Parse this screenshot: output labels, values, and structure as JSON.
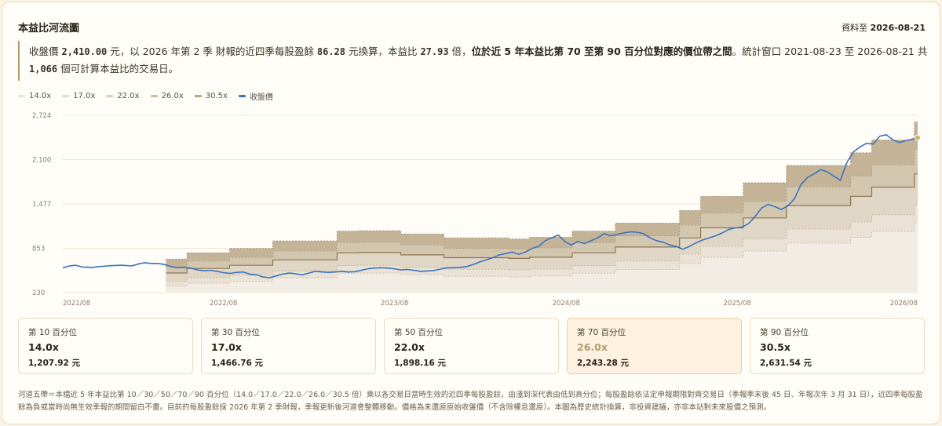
{
  "header": {
    "title": "本益比河流圖",
    "as_of_label": "資料至",
    "as_of_date": "2026-08-21"
  },
  "summary": {
    "t1": "收盤價 ",
    "price": "2,410.00",
    "t2": " 元，以 2026 年第 2 季 財報的近四季每股盈餘 ",
    "eps": "86.28",
    "t3": " 元換算，本益比 ",
    "pe": "27.93",
    "t4": " 倍，",
    "strong": "位於近 5 年本益比第 70 至第 90 百分位對應的價位帶之間",
    "t5": "。統計窗口 2021-08-23 至 2026-08-21 共 ",
    "days": "1,066",
    "t6": " 個可計算本益比的交易日。"
  },
  "legend": [
    {
      "label": "14.0x",
      "color": "#ece6da"
    },
    {
      "label": "17.0x",
      "color": "#e3dccd"
    },
    {
      "label": "22.0x",
      "color": "#d8cfbd"
    },
    {
      "label": "26.0x",
      "color": "#c9bda6"
    },
    {
      "label": "30.5x",
      "color": "#b7a788"
    },
    {
      "label": "收盤價",
      "color": "#3a72c0"
    }
  ],
  "tiles": [
    {
      "label": "第 10 百分位",
      "multiple": "14.0x",
      "price": "1,207.92 元",
      "highlight": false
    },
    {
      "label": "第 30 百分位",
      "multiple": "17.0x",
      "price": "1,466.76 元",
      "highlight": false
    },
    {
      "label": "第 50 百分位",
      "multiple": "22.0x",
      "price": "1,898.16 元",
      "highlight": false
    },
    {
      "label": "第 70 百分位",
      "multiple": "26.0x",
      "price": "2,243.28 元",
      "highlight": true
    },
    {
      "label": "第 90 百分位",
      "multiple": "30.5x",
      "price": "2,631.54 元",
      "highlight": false
    }
  ],
  "footnote": "河道五帶＝本檔近 5 年本益比第 10／30／50／70／90 百分位（14.0／17.0／22.0／26.0／30.5 倍）乘以各交易日當時生效的近四季每股盈餘，由淺到深代表由低到高分位；每股盈餘依法定申報期限對齊交易日（季報季末後 45 日、年報次年 3 月 31 日），近四季每股盈餘為負或當時尚無生效季報的期間留白不畫。目前的每股盈餘採 2026 年第 2 季財報，季報更新後河道會整體移動。價格為未還原原始收盤價（不含除權息還原）。本圖為歷史統計換算，非投資建議，亦非本站對未來股價之預測。",
  "chart_data": {
    "type": "area",
    "y_ticks": [
      230,
      853,
      1477,
      2100,
      2724
    ],
    "y_tick_labels": [
      "230",
      "853",
      "1,477",
      "2,100",
      "2,724"
    ],
    "ylim": [
      230,
      2724
    ],
    "x_start": "2021-08-23",
    "x_end": "2026-08-21",
    "x_ticks": [
      {
        "date": "2021-08-23",
        "label": "2021/08"
      },
      {
        "date": "2022-08-01",
        "label": "2022/08"
      },
      {
        "date": "2023-08-01",
        "label": "2023/08"
      },
      {
        "date": "2024-08-01",
        "label": "2024/08"
      },
      {
        "date": "2025-08-01",
        "label": "2025/08"
      },
      {
        "date": "2026-08-21",
        "label": "2026/08"
      }
    ],
    "multiples": [
      14.0,
      17.0,
      22.0,
      26.0,
      30.5
    ],
    "eps_steps": [
      {
        "date": "2022-03-31",
        "eps": 23.0
      },
      {
        "date": "2022-05-15",
        "eps": 25.9
      },
      {
        "date": "2022-08-14",
        "eps": 27.9
      },
      {
        "date": "2022-11-14",
        "eps": 31.4
      },
      {
        "date": "2023-03-31",
        "eps": 35.9
      },
      {
        "date": "2023-05-15",
        "eps": 36.1
      },
      {
        "date": "2023-08-14",
        "eps": 34.6
      },
      {
        "date": "2023-11-14",
        "eps": 32.8
      },
      {
        "date": "2024-03-31",
        "eps": 32.3
      },
      {
        "date": "2024-05-15",
        "eps": 33.1
      },
      {
        "date": "2024-08-14",
        "eps": 35.9
      },
      {
        "date": "2024-11-14",
        "eps": 39.6
      },
      {
        "date": "2025-03-31",
        "eps": 45.4
      },
      {
        "date": "2025-05-15",
        "eps": 51.9
      },
      {
        "date": "2025-08-14",
        "eps": 58.2
      },
      {
        "date": "2025-11-14",
        "eps": 66.2
      },
      {
        "date": "2026-03-31",
        "eps": 72.0
      },
      {
        "date": "2026-05-15",
        "eps": 77.9
      },
      {
        "date": "2026-08-14",
        "eps": 86.28
      }
    ],
    "close": [
      {
        "date": "2021-08-23",
        "value": 580
      },
      {
        "date": "2021-09-06",
        "value": 605
      },
      {
        "date": "2021-09-20",
        "value": 615
      },
      {
        "date": "2021-10-04",
        "value": 590
      },
      {
        "date": "2021-10-25",
        "value": 585
      },
      {
        "date": "2021-11-15",
        "value": 600
      },
      {
        "date": "2021-12-06",
        "value": 610
      },
      {
        "date": "2021-12-27",
        "value": 615
      },
      {
        "date": "2022-01-17",
        "value": 605
      },
      {
        "date": "2022-02-01",
        "value": 635
      },
      {
        "date": "2022-02-14",
        "value": 650
      },
      {
        "date": "2022-02-28",
        "value": 640
      },
      {
        "date": "2022-03-14",
        "value": 640
      },
      {
        "date": "2022-03-28",
        "value": 625
      },
      {
        "date": "2022-04-11",
        "value": 595
      },
      {
        "date": "2022-04-25",
        "value": 580
      },
      {
        "date": "2022-05-09",
        "value": 585
      },
      {
        "date": "2022-05-23",
        "value": 575
      },
      {
        "date": "2022-06-06",
        "value": 550
      },
      {
        "date": "2022-06-20",
        "value": 540
      },
      {
        "date": "2022-07-04",
        "value": 545
      },
      {
        "date": "2022-07-18",
        "value": 530
      },
      {
        "date": "2022-08-01",
        "value": 510
      },
      {
        "date": "2022-08-15",
        "value": 500
      },
      {
        "date": "2022-08-29",
        "value": 515
      },
      {
        "date": "2022-09-12",
        "value": 520
      },
      {
        "date": "2022-09-26",
        "value": 490
      },
      {
        "date": "2022-10-10",
        "value": 480
      },
      {
        "date": "2022-10-24",
        "value": 450
      },
      {
        "date": "2022-11-07",
        "value": 440
      },
      {
        "date": "2022-11-21",
        "value": 465
      },
      {
        "date": "2022-12-05",
        "value": 490
      },
      {
        "date": "2022-12-19",
        "value": 505
      },
      {
        "date": "2023-01-02",
        "value": 495
      },
      {
        "date": "2023-01-16",
        "value": 480
      },
      {
        "date": "2023-01-30",
        "value": 505
      },
      {
        "date": "2023-02-13",
        "value": 530
      },
      {
        "date": "2023-02-27",
        "value": 520
      },
      {
        "date": "2023-03-13",
        "value": 515
      },
      {
        "date": "2023-03-27",
        "value": 520
      },
      {
        "date": "2023-04-10",
        "value": 530
      },
      {
        "date": "2023-04-24",
        "value": 520
      },
      {
        "date": "2023-05-08",
        "value": 525
      },
      {
        "date": "2023-05-22",
        "value": 545
      },
      {
        "date": "2023-06-05",
        "value": 565
      },
      {
        "date": "2023-06-19",
        "value": 575
      },
      {
        "date": "2023-07-03",
        "value": 580
      },
      {
        "date": "2023-07-17",
        "value": 575
      },
      {
        "date": "2023-07-31",
        "value": 565
      },
      {
        "date": "2023-08-14",
        "value": 550
      },
      {
        "date": "2023-08-28",
        "value": 555
      },
      {
        "date": "2023-09-11",
        "value": 545
      },
      {
        "date": "2023-09-25",
        "value": 530
      },
      {
        "date": "2023-10-09",
        "value": 535
      },
      {
        "date": "2023-10-23",
        "value": 540
      },
      {
        "date": "2023-11-06",
        "value": 560
      },
      {
        "date": "2023-11-20",
        "value": 580
      },
      {
        "date": "2023-12-04",
        "value": 580
      },
      {
        "date": "2023-12-18",
        "value": 585
      },
      {
        "date": "2024-01-01",
        "value": 595
      },
      {
        "date": "2024-01-15",
        "value": 625
      },
      {
        "date": "2024-01-29",
        "value": 660
      },
      {
        "date": "2024-02-12",
        "value": 690
      },
      {
        "date": "2024-02-26",
        "value": 720
      },
      {
        "date": "2024-03-11",
        "value": 760
      },
      {
        "date": "2024-03-25",
        "value": 780
      },
      {
        "date": "2024-04-08",
        "value": 800
      },
      {
        "date": "2024-04-22",
        "value": 770
      },
      {
        "date": "2024-05-06",
        "value": 800
      },
      {
        "date": "2024-05-20",
        "value": 850
      },
      {
        "date": "2024-06-03",
        "value": 880
      },
      {
        "date": "2024-06-17",
        "value": 960
      },
      {
        "date": "2024-07-01",
        "value": 1000
      },
      {
        "date": "2024-07-15",
        "value": 1040
      },
      {
        "date": "2024-07-29",
        "value": 950
      },
      {
        "date": "2024-08-12",
        "value": 900
      },
      {
        "date": "2024-08-26",
        "value": 950
      },
      {
        "date": "2024-09-09",
        "value": 920
      },
      {
        "date": "2024-09-23",
        "value": 960
      },
      {
        "date": "2024-10-07",
        "value": 1000
      },
      {
        "date": "2024-10-21",
        "value": 1060
      },
      {
        "date": "2024-11-04",
        "value": 1030
      },
      {
        "date": "2024-11-18",
        "value": 1050
      },
      {
        "date": "2024-12-02",
        "value": 1070
      },
      {
        "date": "2024-12-16",
        "value": 1085
      },
      {
        "date": "2024-12-30",
        "value": 1080
      },
      {
        "date": "2025-01-13",
        "value": 1060
      },
      {
        "date": "2025-01-27",
        "value": 1000
      },
      {
        "date": "2025-02-10",
        "value": 960
      },
      {
        "date": "2025-02-24",
        "value": 940
      },
      {
        "date": "2025-03-10",
        "value": 900
      },
      {
        "date": "2025-03-24",
        "value": 880
      },
      {
        "date": "2025-04-07",
        "value": 840
      },
      {
        "date": "2025-04-21",
        "value": 880
      },
      {
        "date": "2025-05-05",
        "value": 930
      },
      {
        "date": "2025-05-19",
        "value": 970
      },
      {
        "date": "2025-06-02",
        "value": 1000
      },
      {
        "date": "2025-06-16",
        "value": 1030
      },
      {
        "date": "2025-06-30",
        "value": 1070
      },
      {
        "date": "2025-07-14",
        "value": 1120
      },
      {
        "date": "2025-07-28",
        "value": 1140
      },
      {
        "date": "2025-08-11",
        "value": 1150
      },
      {
        "date": "2025-08-25",
        "value": 1200
      },
      {
        "date": "2025-09-08",
        "value": 1300
      },
      {
        "date": "2025-09-22",
        "value": 1420
      },
      {
        "date": "2025-10-06",
        "value": 1470
      },
      {
        "date": "2025-10-20",
        "value": 1440
      },
      {
        "date": "2025-11-03",
        "value": 1400
      },
      {
        "date": "2025-11-17",
        "value": 1450
      },
      {
        "date": "2025-12-01",
        "value": 1550
      },
      {
        "date": "2025-12-15",
        "value": 1750
      },
      {
        "date": "2025-12-29",
        "value": 1850
      },
      {
        "date": "2026-01-12",
        "value": 1900
      },
      {
        "date": "2026-01-26",
        "value": 1960
      },
      {
        "date": "2026-02-09",
        "value": 1930
      },
      {
        "date": "2026-02-23",
        "value": 1870
      },
      {
        "date": "2026-03-09",
        "value": 1810
      },
      {
        "date": "2026-03-23",
        "value": 2060
      },
      {
        "date": "2026-04-06",
        "value": 2210
      },
      {
        "date": "2026-04-20",
        "value": 2280
      },
      {
        "date": "2026-05-04",
        "value": 2330
      },
      {
        "date": "2026-05-18",
        "value": 2320
      },
      {
        "date": "2026-06-01",
        "value": 2430
      },
      {
        "date": "2026-06-15",
        "value": 2450
      },
      {
        "date": "2026-06-29",
        "value": 2380
      },
      {
        "date": "2026-07-13",
        "value": 2340
      },
      {
        "date": "2026-07-27",
        "value": 2370
      },
      {
        "date": "2026-08-10",
        "value": 2390
      },
      {
        "date": "2026-08-21",
        "value": 2410
      }
    ],
    "grid": true,
    "legend_position": "top-left"
  }
}
